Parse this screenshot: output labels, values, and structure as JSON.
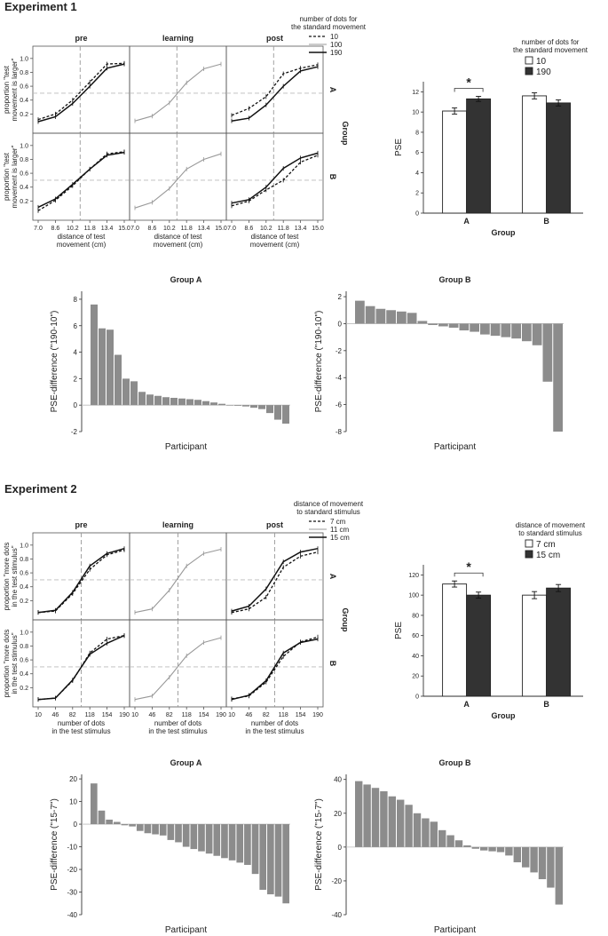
{
  "figure": {
    "exp1_title": "Experiment 1",
    "exp2_title": "Experiment 2",
    "group_label": "Group",
    "rowA": "A",
    "rowB": "B"
  },
  "chart_data": [
    {
      "id": "e1_psych",
      "type": "line",
      "panel_titles": [
        "pre",
        "learning",
        "post"
      ],
      "rows": [
        "A",
        "B"
      ],
      "x": [
        7.0,
        8.6,
        10.2,
        11.8,
        13.4,
        15.0
      ],
      "xticks": [
        "7.0",
        "8.6",
        "10.2",
        "11.8",
        "13.4",
        "15.0"
      ],
      "yticks": [
        "0.2",
        "0.4",
        "0.6",
        "0.8",
        "1.0"
      ],
      "ylim": [
        0.0,
        1.1
      ],
      "ylabel": [
        "proportion \"test",
        "movement is larger\""
      ],
      "xlabel": [
        "distance of test",
        "movement (cm)"
      ],
      "pse_line": 10.9,
      "legend_title": [
        "number of dots for",
        "the standard movement"
      ],
      "series_names": [
        "10",
        "100",
        "190"
      ],
      "panels": [
        {
          "row": 0,
          "col": 0,
          "series": [
            {
              "s": 0,
              "values": [
                0.12,
                0.2,
                0.4,
                0.66,
                0.92,
                0.93
              ]
            },
            {
              "s": 2,
              "values": [
                0.09,
                0.16,
                0.35,
                0.6,
                0.86,
                0.92
              ]
            }
          ]
        },
        {
          "row": 0,
          "col": 1,
          "series": [
            {
              "s": 1,
              "values": [
                0.1,
                0.17,
                0.36,
                0.65,
                0.85,
                0.92
              ]
            }
          ]
        },
        {
          "row": 0,
          "col": 2,
          "series": [
            {
              "s": 0,
              "values": [
                0.18,
                0.28,
                0.45,
                0.78,
                0.86,
                0.91
              ]
            },
            {
              "s": 2,
              "values": [
                0.1,
                0.14,
                0.33,
                0.6,
                0.82,
                0.88
              ]
            }
          ]
        },
        {
          "row": 1,
          "col": 0,
          "series": [
            {
              "s": 0,
              "values": [
                0.06,
                0.21,
                0.42,
                0.66,
                0.88,
                0.91
              ]
            },
            {
              "s": 2,
              "values": [
                0.11,
                0.23,
                0.44,
                0.66,
                0.86,
                0.9
              ]
            }
          ]
        },
        {
          "row": 1,
          "col": 1,
          "series": [
            {
              "s": 1,
              "values": [
                0.1,
                0.18,
                0.38,
                0.66,
                0.8,
                0.88
              ]
            }
          ]
        },
        {
          "row": 1,
          "col": 2,
          "series": [
            {
              "s": 0,
              "values": [
                0.13,
                0.2,
                0.36,
                0.5,
                0.76,
                0.86
              ]
            },
            {
              "s": 2,
              "values": [
                0.17,
                0.22,
                0.4,
                0.67,
                0.82,
                0.89
              ]
            }
          ]
        }
      ]
    },
    {
      "id": "e1_bar",
      "type": "bar",
      "ylabel": "PSE",
      "xlabel": "Group",
      "categories": [
        "A",
        "B"
      ],
      "yticks": [
        "0",
        "2",
        "4",
        "6",
        "8",
        "10",
        "12"
      ],
      "ylim": [
        0,
        13
      ],
      "legend_title": [
        "number of dots for",
        "the standard movement"
      ],
      "series": [
        {
          "name": "10",
          "values": [
            10.1,
            11.6
          ],
          "errors": [
            0.3,
            0.3
          ]
        },
        {
          "name": "190",
          "values": [
            11.3,
            10.9
          ],
          "errors": [
            0.25,
            0.3
          ]
        }
      ],
      "annotation": "*"
    },
    {
      "id": "e1_diffA",
      "type": "bar",
      "title": "Group A",
      "xlabel": "Participant",
      "ylabel": "PSE-difference (\"190-10\")",
      "yticks": [
        "-2",
        "0",
        "2",
        "4",
        "6",
        "8"
      ],
      "ylim": [
        -2,
        8.6
      ],
      "values": [
        7.6,
        5.8,
        5.7,
        3.8,
        2.0,
        1.8,
        1.0,
        0.8,
        0.7,
        0.6,
        0.55,
        0.5,
        0.45,
        0.4,
        0.3,
        0.2,
        0.1,
        0.0,
        -0.05,
        -0.1,
        -0.2,
        -0.3,
        -0.6,
        -1.1,
        -1.4
      ]
    },
    {
      "id": "e1_diffB",
      "type": "bar",
      "title": "Group B",
      "xlabel": "Participant",
      "ylabel": "PSE-difference (\"190-10\")",
      "yticks": [
        "-8",
        "-6",
        "-4",
        "-2",
        "0",
        "2"
      ],
      "ylim": [
        -8,
        2.4
      ],
      "values": [
        1.7,
        1.3,
        1.1,
        1.0,
        0.9,
        0.8,
        0.2,
        -0.1,
        -0.2,
        -0.3,
        -0.5,
        -0.6,
        -0.8,
        -0.9,
        -1.0,
        -1.1,
        -1.3,
        -1.6,
        -4.3,
        -8.0
      ]
    },
    {
      "id": "e2_psych",
      "type": "line",
      "panel_titles": [
        "pre",
        "learning",
        "post"
      ],
      "rows": [
        "A",
        "B"
      ],
      "x": [
        10,
        46,
        82,
        118,
        154,
        190
      ],
      "xticks": [
        "10",
        "46",
        "82",
        "118",
        "154",
        "190"
      ],
      "yticks": [
        "0.2",
        "0.4",
        "0.6",
        "0.8",
        "1.0"
      ],
      "ylim": [
        0.0,
        1.1
      ],
      "ylabel": [
        "proportion \"more dots",
        "in the test stimulus\""
      ],
      "xlabel": [
        "number of dots",
        "in the test stimulus"
      ],
      "pse_line": 100,
      "legend_title": [
        "distance of movement",
        "to standard stimulus"
      ],
      "series_names": [
        "7 cm",
        "11 cm",
        "15 cm"
      ],
      "panels": [
        {
          "row": 0,
          "col": 0,
          "series": [
            {
              "s": 0,
              "values": [
                0.03,
                0.05,
                0.3,
                0.65,
                0.86,
                0.93
              ]
            },
            {
              "s": 2,
              "values": [
                0.03,
                0.06,
                0.32,
                0.7,
                0.88,
                0.95
              ]
            }
          ]
        },
        {
          "row": 0,
          "col": 1,
          "series": [
            {
              "s": 1,
              "values": [
                0.03,
                0.08,
                0.35,
                0.7,
                0.88,
                0.94
              ]
            }
          ]
        },
        {
          "row": 0,
          "col": 2,
          "series": [
            {
              "s": 0,
              "values": [
                0.03,
                0.08,
                0.25,
                0.68,
                0.84,
                0.9
              ]
            },
            {
              "s": 2,
              "values": [
                0.05,
                0.12,
                0.37,
                0.76,
                0.9,
                0.95
              ]
            }
          ]
        },
        {
          "row": 1,
          "col": 0,
          "series": [
            {
              "s": 0,
              "values": [
                0.03,
                0.05,
                0.3,
                0.7,
                0.9,
                0.95
              ]
            },
            {
              "s": 2,
              "values": [
                0.03,
                0.05,
                0.31,
                0.68,
                0.84,
                0.95
              ]
            }
          ]
        },
        {
          "row": 1,
          "col": 1,
          "series": [
            {
              "s": 1,
              "values": [
                0.03,
                0.08,
                0.35,
                0.66,
                0.85,
                0.92
              ]
            }
          ]
        },
        {
          "row": 1,
          "col": 2,
          "series": [
            {
              "s": 0,
              "values": [
                0.04,
                0.08,
                0.28,
                0.65,
                0.86,
                0.93
              ]
            },
            {
              "s": 2,
              "values": [
                0.03,
                0.09,
                0.3,
                0.7,
                0.85,
                0.9
              ]
            }
          ]
        }
      ]
    },
    {
      "id": "e2_bar",
      "type": "bar",
      "ylabel": "PSE",
      "xlabel": "Group",
      "categories": [
        "A",
        "B"
      ],
      "yticks": [
        "0",
        "20",
        "40",
        "60",
        "80",
        "100",
        "120"
      ],
      "ylim": [
        0,
        130
      ],
      "legend_title": [
        "distance of movement",
        "to standard stimulus"
      ],
      "series": [
        {
          "name": "7 cm",
          "values": [
            111,
            100
          ],
          "errors": [
            3,
            3.5
          ]
        },
        {
          "name": "15 cm",
          "values": [
            100,
            107
          ],
          "errors": [
            3,
            3.5
          ]
        }
      ],
      "annotation": "*"
    },
    {
      "id": "e2_diffA",
      "type": "bar",
      "title": "Group A",
      "xlabel": "Participant",
      "ylabel": "PSE-difference (\"15-7\")",
      "yticks": [
        "-40",
        "-30",
        "-20",
        "-10",
        "0",
        "10",
        "20"
      ],
      "ylim": [
        -40,
        22
      ],
      "values": [
        18,
        6,
        2,
        1,
        -0.5,
        -1,
        -3,
        -4,
        -4.5,
        -5,
        -7,
        -8,
        -10,
        -11,
        -12,
        -13,
        -14,
        -15,
        -16,
        -17,
        -18,
        -22,
        -29,
        -31,
        -32,
        -35
      ]
    },
    {
      "id": "e2_diffB",
      "type": "bar",
      "title": "Group B",
      "xlabel": "Participant",
      "ylabel": "PSE-difference (\"15-7\")",
      "yticks": [
        "-40",
        "-20",
        "0",
        "20",
        "40"
      ],
      "ylim": [
        -40,
        43
      ],
      "values": [
        39,
        37,
        35,
        33,
        30,
        28,
        25,
        20,
        17,
        15,
        10,
        7,
        4,
        1,
        -1,
        -2,
        -2.5,
        -3,
        -5,
        -9,
        -12,
        -15,
        -19,
        -24,
        -34
      ]
    }
  ]
}
